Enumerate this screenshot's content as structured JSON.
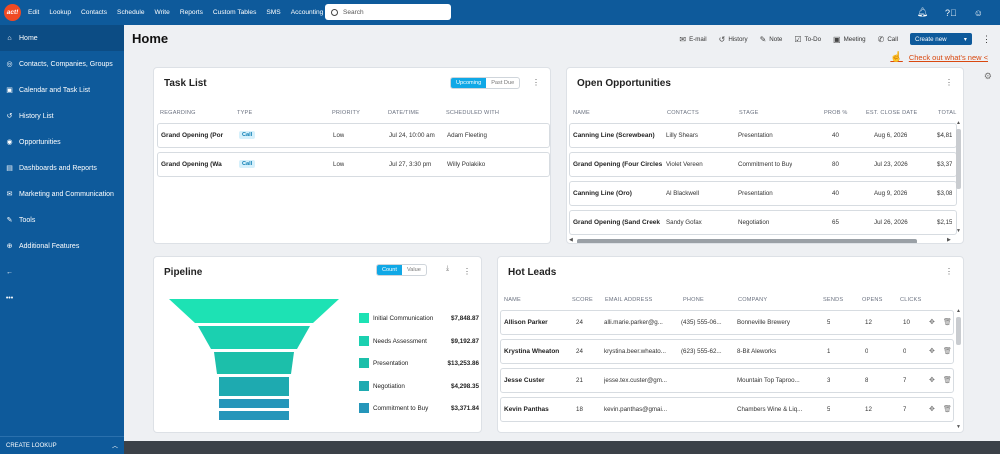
{
  "topbar": {
    "logo": "act!",
    "menu": [
      "Edit",
      "Lookup",
      "Contacts",
      "Schedule",
      "Write",
      "Reports",
      "Custom Tables",
      "SMS",
      "Accounting"
    ],
    "search_placeholder": "Search"
  },
  "sidebar": {
    "items": [
      {
        "label": "Home",
        "icon": "home-icon"
      },
      {
        "label": "Contacts, Companies, Groups",
        "icon": "contacts-icon"
      },
      {
        "label": "Calendar and Task List",
        "icon": "calendar-icon"
      },
      {
        "label": "History List",
        "icon": "history-icon"
      },
      {
        "label": "Opportunities",
        "icon": "opportunities-icon"
      },
      {
        "label": "Dashboards and Reports",
        "icon": "dashboard-icon"
      },
      {
        "label": "Marketing and Communication",
        "icon": "marketing-icon"
      },
      {
        "label": "Tools",
        "icon": "tools-icon"
      },
      {
        "label": "Additional Features",
        "icon": "features-icon"
      }
    ],
    "footer": "CREATE LOOKUP"
  },
  "page": {
    "title": "Home",
    "actions": [
      "E-mail",
      "History",
      "Note",
      "To-Do",
      "Meeting",
      "Call"
    ],
    "create_new": "Create new",
    "whats_new": "Check out what's new <"
  },
  "task_list": {
    "title": "Task List",
    "toggle": [
      "Upcoming",
      "Past Due"
    ],
    "headers": [
      "REGARDING",
      "TYPE",
      "PRIORITY",
      "DATE/TIME",
      "SCHEDULED WITH"
    ],
    "rows": [
      {
        "regarding": "Grand Opening (Por",
        "type": "Call",
        "priority": "Low",
        "datetime": "Jul 24, 10:00 am",
        "with": "Adam Fleeting"
      },
      {
        "regarding": "Grand Opening (Wa",
        "type": "Call",
        "priority": "Low",
        "datetime": "Jul 27, 3:30 pm",
        "with": "Willy Polakiko"
      }
    ]
  },
  "opportunities": {
    "title": "Open Opportunities",
    "headers": [
      "NAME",
      "CONTACTS",
      "STAGE",
      "PROB %",
      "EST. CLOSE DATE",
      "TOTAL"
    ],
    "rows": [
      {
        "name": "Canning Line (Screwbean)",
        "contact": "Lilly Shears",
        "stage": "Presentation",
        "prob": "40",
        "date": "Aug 6, 2026",
        "total": "$4,81"
      },
      {
        "name": "Grand Opening (Four Circles",
        "contact": "Violet Vereen",
        "stage": "Commitment to Buy",
        "prob": "80",
        "date": "Jul 23, 2026",
        "total": "$3,37"
      },
      {
        "name": "Canning Line (Oro)",
        "contact": "Al Blackwell",
        "stage": "Presentation",
        "prob": "40",
        "date": "Aug 9, 2026",
        "total": "$3,08"
      },
      {
        "name": "Grand Opening (Sand Creek",
        "contact": "Sandy Gofax",
        "stage": "Negotiation",
        "prob": "65",
        "date": "Jul 26, 2026",
        "total": "$2,15"
      }
    ]
  },
  "pipeline": {
    "title": "Pipeline",
    "toggle": [
      "Count",
      "Value"
    ],
    "stages": [
      {
        "label": "Initial Communication",
        "value": "$7,848.87",
        "color": "#1de2b4"
      },
      {
        "label": "Needs Assessment",
        "value": "$9,192.87",
        "color": "#1bd0b0"
      },
      {
        "label": "Presentation",
        "value": "$13,253.86",
        "color": "#1cbfaa"
      },
      {
        "label": "Negotiation",
        "value": "$4,298.35",
        "color": "#1eaab0"
      },
      {
        "label": "Commitment to Buy",
        "value": "$3,371.84",
        "color": "#2596ba"
      }
    ]
  },
  "hot_leads": {
    "title": "Hot Leads",
    "headers": [
      "NAME",
      "SCORE",
      "EMAIL ADDRESS",
      "PHONE",
      "COMPANY",
      "SENDS",
      "OPENS",
      "CLICKS"
    ],
    "rows": [
      {
        "name": "Allison Parker",
        "score": "24",
        "email": "alli.marie.parker@g...",
        "phone": "(435) 555-06...",
        "company": "Bonneville Brewery",
        "sends": "5",
        "opens": "12",
        "clicks": "10"
      },
      {
        "name": "Krystina Wheaton",
        "score": "24",
        "email": "krystina.beer.wheato...",
        "phone": "(623) 555-62...",
        "company": "8-Bit Aleworks",
        "sends": "1",
        "opens": "0",
        "clicks": "0"
      },
      {
        "name": "Jesse Custer",
        "score": "21",
        "email": "jesse.tex.custer@gm...",
        "phone": "",
        "company": "Mountain Top Taproo...",
        "sends": "3",
        "opens": "8",
        "clicks": "7"
      },
      {
        "name": "Kevin Panthas",
        "score": "18",
        "email": "kevin.panthas@gmai...",
        "phone": "",
        "company": "Chambers Wine & Liq...",
        "sends": "5",
        "opens": "12",
        "clicks": "7"
      }
    ]
  }
}
